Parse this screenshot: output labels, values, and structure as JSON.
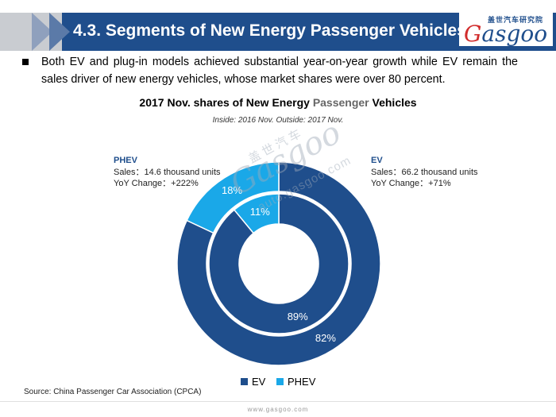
{
  "header": {
    "title": "4.3. Segments of New Energy Passenger Vehicles",
    "logo_cn": "盖世汽车研究院",
    "logo_text_g": "G",
    "logo_text_rest": "asgoo"
  },
  "bullet": {
    "text": "Both EV and plug-in models achieved substantial year-on-year growth while EV remain the sales driver of new energy vehicles, whose market shares were over 80 percent."
  },
  "chart_data": {
    "type": "pie",
    "variant": "nested-donut",
    "title_part1": "2017 Nov. shares of New Energy ",
    "title_highlight": "Passenger",
    "title_part2": " Vehicles",
    "subtitle": "Inside: 2016 Nov.  Outside: 2017 Nov.",
    "categories": [
      "EV",
      "PHEV"
    ],
    "series": [
      {
        "name": "2016 Nov.",
        "ring": "inner",
        "values": [
          89,
          11
        ],
        "labels": [
          "89%",
          "11%"
        ]
      },
      {
        "name": "2017 Nov.",
        "ring": "outer",
        "values": [
          82,
          18
        ],
        "labels": [
          "82%",
          "18%"
        ]
      }
    ],
    "colors": {
      "EV": "#1f4e8c",
      "PHEV": "#1aa8e8"
    },
    "annotations": {
      "phev": {
        "name": "PHEV",
        "line1": "Sales：14.6 thousand units",
        "line2": "YoY Change：+222%"
      },
      "ev": {
        "name": "EV",
        "line1": "Sales：66.2 thousand units",
        "line2": "YoY Change：+71%"
      }
    },
    "legend": [
      "EV",
      "PHEV"
    ],
    "legend_position": "bottom"
  },
  "watermark": {
    "cn": "盖世汽车",
    "main": "Gasgoo",
    "url": "auto.gasgoo.com"
  },
  "source": "Source: China Passenger Car Association (CPCA)",
  "footer_url": "www.gasgoo.com"
}
